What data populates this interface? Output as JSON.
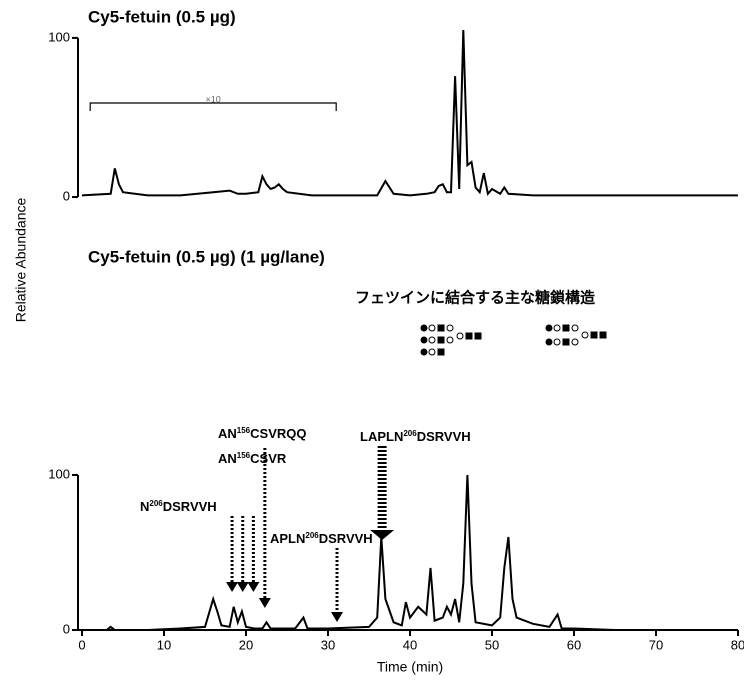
{
  "chart_data": [
    {
      "type": "line",
      "title": "Cy5-fetuin (0.5 µg)",
      "ylabel": "Relative Abundance",
      "xlim": [
        0,
        80
      ],
      "ylim": [
        0,
        110
      ],
      "yticks": [
        0,
        100
      ],
      "bracket": {
        "x": [
          1,
          31
        ],
        "label": "×10"
      },
      "series": [
        {
          "color": "#000000",
          "x": [
            0,
            3.5,
            4,
            4.5,
            5,
            8,
            12,
            16,
            18,
            19,
            20,
            21.5,
            22,
            22.5,
            23,
            23.5,
            24,
            24.5,
            25,
            28,
            30,
            36,
            37,
            38,
            40,
            42,
            43,
            43.5,
            44,
            44.5,
            45,
            45.5,
            46,
            46.5,
            47,
            47.5,
            48,
            48.5,
            49,
            49.5,
            50,
            51,
            51.5,
            52,
            55,
            60,
            70,
            80
          ],
          "values": [
            1,
            2,
            18,
            8,
            3,
            1,
            1,
            3,
            4,
            2,
            2,
            3,
            13,
            8,
            5,
            6,
            8,
            5,
            3,
            1,
            1,
            1,
            10,
            2,
            1,
            2,
            3,
            7,
            8,
            3,
            3,
            76,
            5,
            105,
            20,
            22,
            6,
            3,
            15,
            2,
            5,
            2,
            6,
            2,
            1,
            1,
            1,
            1
          ]
        }
      ]
    },
    {
      "type": "line",
      "title": "Cy5-fetuin (0.5 µg) (1 µg/lane)",
      "subtitle": "フェツインに結合する主な糖鎖構造",
      "xlabel": "Time (min)",
      "xlim": [
        0,
        80
      ],
      "xticks": [
        0,
        10,
        20,
        30,
        40,
        50,
        60,
        70,
        80
      ],
      "ylim": [
        0,
        110
      ],
      "yticks": [
        0,
        100
      ],
      "annotations": [
        {
          "parts": [
            "N",
            "206",
            "DSRVVH"
          ],
          "x": [
            18.3,
            19.6,
            20.9
          ]
        },
        {
          "parts": [
            "AN",
            "156",
            "CSVRQQ"
          ],
          "x": [
            22.3
          ]
        },
        {
          "parts": [
            "AN",
            "156",
            "CSVR"
          ]
        },
        {
          "parts": [
            "APLN",
            "206",
            "DSRVVH"
          ],
          "x": [
            31.1
          ]
        },
        {
          "parts": [
            "LAPLN",
            "206",
            "DSRVVH"
          ],
          "x": [
            36.6
          ]
        }
      ],
      "series": [
        {
          "color": "#000000",
          "x": [
            0,
            3,
            3.5,
            4,
            8,
            12,
            15,
            16,
            16.5,
            17,
            18,
            18.5,
            19,
            19.5,
            20,
            21,
            22,
            22.5,
            23,
            26,
            27,
            27.5,
            30,
            35,
            36,
            36.5,
            37,
            38,
            39,
            39.5,
            40,
            41,
            42,
            42.5,
            43,
            44,
            44.5,
            45,
            45.5,
            46,
            46.5,
            47,
            47.5,
            48,
            50,
            51,
            51.5,
            52,
            52.5,
            53,
            55,
            57,
            58,
            58.5,
            60,
            65,
            70,
            80
          ],
          "values": [
            0,
            0,
            2,
            0,
            0,
            1,
            2,
            20,
            12,
            3,
            2,
            15,
            5,
            12,
            2,
            1,
            1,
            5,
            1,
            1,
            8,
            1,
            1,
            2,
            8,
            60,
            20,
            5,
            3,
            18,
            8,
            15,
            10,
            40,
            6,
            8,
            15,
            10,
            20,
            5,
            30,
            100,
            30,
            5,
            3,
            8,
            40,
            60,
            20,
            8,
            4,
            2,
            10,
            1,
            1,
            0,
            0,
            0
          ]
        }
      ]
    }
  ]
}
